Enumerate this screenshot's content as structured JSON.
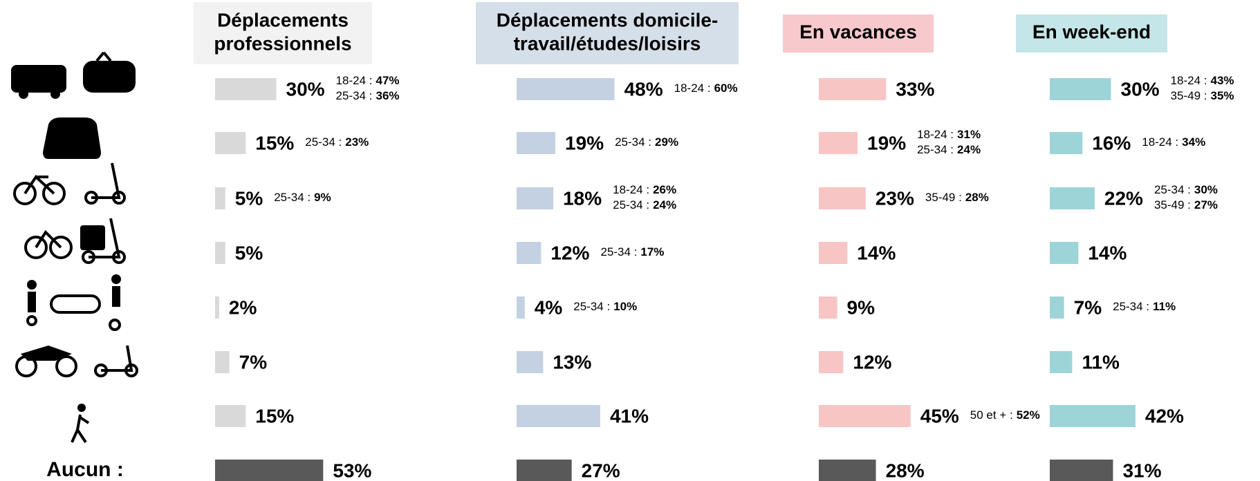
{
  "categories": [
    null,
    null,
    null,
    null,
    null,
    null,
    null,
    "Aucun :"
  ],
  "chart_data": [
    {
      "type": "bar",
      "title": [
        "Déplacements",
        "professionnels"
      ],
      "title_bg": "#f2f2f2",
      "color": "#d9d9d9",
      "none_color": "#595959",
      "values": [
        30,
        15,
        5,
        5,
        2,
        7,
        15,
        53
      ],
      "value_labels": [
        "30%",
        "15%",
        "5%",
        "5%",
        "2%",
        "7%",
        "15%",
        "53%"
      ],
      "notes": [
        [
          {
            "group": "18-24 :",
            "share": "47%"
          },
          {
            "group": "25-34 :",
            "share": "36%"
          }
        ],
        [
          {
            "group": "25-34 :",
            "share": "23%"
          }
        ],
        [
          {
            "group": "25-34 :",
            "share": "9%"
          }
        ],
        [],
        [],
        [],
        [],
        []
      ]
    },
    {
      "type": "bar",
      "title": [
        "Déplacements domicile-",
        "travail/études/loisirs"
      ],
      "title_bg": "#d5dfe9",
      "color": "#c3d1e2",
      "none_color": "#595959",
      "values": [
        48,
        19,
        18,
        12,
        4,
        13,
        41,
        27
      ],
      "value_labels": [
        "48%",
        "19%",
        "18%",
        "12%",
        "4%",
        "13%",
        "41%",
        "27%"
      ],
      "notes": [
        [
          {
            "group": "18-24 :",
            "share": "60%"
          }
        ],
        [
          {
            "group": "25-34 :",
            "share": "29%"
          }
        ],
        [
          {
            "group": "18-24 :",
            "share": "26%"
          },
          {
            "group": "25-34 :",
            "share": "24%"
          }
        ],
        [
          {
            "group": "25-34 :",
            "share": "17%"
          }
        ],
        [
          {
            "group": "25-34 :",
            "share": "10%"
          }
        ],
        [],
        [],
        []
      ]
    },
    {
      "type": "bar",
      "title": [
        "En vacances"
      ],
      "title_bg": "#f8c9cc",
      "color": "#f8c5c5",
      "none_color": "#595959",
      "values": [
        33,
        19,
        23,
        14,
        9,
        12,
        45,
        28
      ],
      "value_labels": [
        "33%",
        "19%",
        "23%",
        "14%",
        "9%",
        "12%",
        "45%",
        "28%"
      ],
      "notes": [
        [],
        [
          {
            "group": "18-24 :",
            "share": "31%"
          },
          {
            "group": "25-34 :",
            "share": "24%"
          }
        ],
        [
          {
            "group": "35-49 :",
            "share": "28%"
          }
        ],
        [],
        [],
        [],
        [
          {
            "group": "50 et + :",
            "share": "52%"
          }
        ],
        []
      ]
    },
    {
      "type": "bar",
      "title": [
        "En week-end"
      ],
      "title_bg": "#c4e6e8",
      "color": "#9dd4d8",
      "none_color": "#595959",
      "values": [
        30,
        16,
        22,
        14,
        7,
        11,
        42,
        31
      ],
      "value_labels": [
        "30%",
        "16%",
        "22%",
        "14%",
        "7%",
        "11%",
        "42%",
        "31%"
      ],
      "notes": [
        [
          {
            "group": "18-24 :",
            "share": "43%"
          },
          {
            "group": "35-49 :",
            "share": "35%"
          }
        ],
        [
          {
            "group": "18-24 :",
            "share": "34%"
          }
        ],
        [
          {
            "group": "25-34 :",
            "share": "30%"
          },
          {
            "group": "35-49 :",
            "share": "27%"
          }
        ],
        [],
        [
          {
            "group": "25-34 :",
            "share": "11%"
          }
        ],
        [],
        [],
        []
      ]
    }
  ]
}
